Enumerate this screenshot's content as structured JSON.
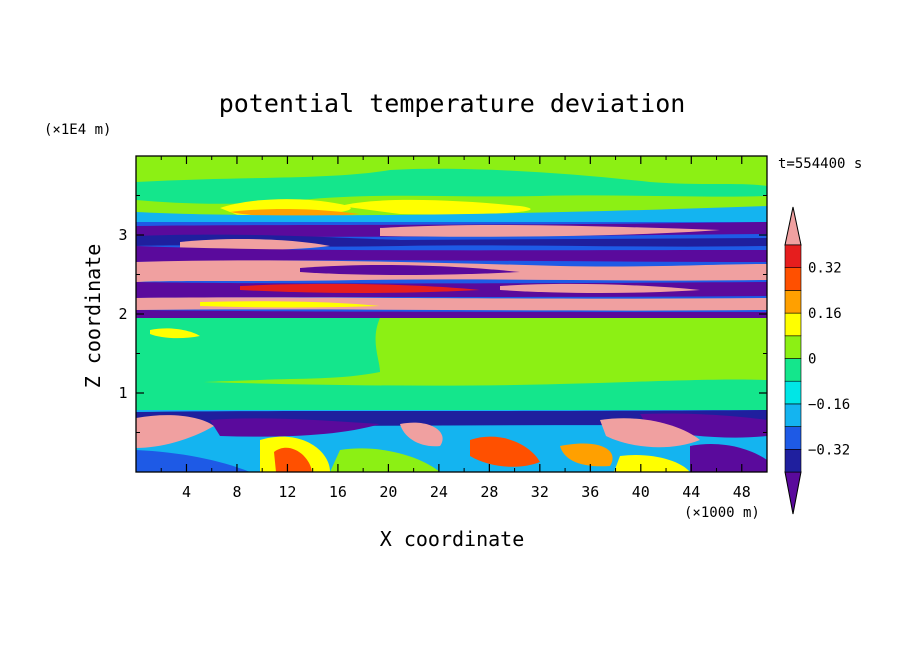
{
  "chart_data": {
    "type": "heatmap",
    "title": "potential temperature deviation",
    "xlabel": "X coordinate",
    "ylabel": "Z coordinate",
    "x_unit": "(×1000 m)",
    "y_unit": "(×1E4 m)",
    "time_label": "t=554400 s",
    "xlim": [
      0,
      50
    ],
    "ylim": [
      0,
      4
    ],
    "x_ticks": [
      4,
      8,
      12,
      16,
      20,
      24,
      28,
      32,
      36,
      40,
      44,
      48
    ],
    "y_ticks": [
      1,
      2,
      3
    ],
    "colorbar": {
      "levels": [
        -0.4,
        -0.32,
        -0.24,
        -0.16,
        -0.08,
        0,
        0.08,
        0.16,
        0.24,
        0.32,
        0.4
      ],
      "labeled_levels": [
        0.32,
        0.16,
        0,
        -0.16,
        -0.32
      ],
      "tick_labels": [
        "0.32",
        "0.16",
        "0",
        "−0.16",
        "−0.32"
      ],
      "colors": [
        "#5a0a9c",
        "#1f1f9e",
        "#1e5ae6",
        "#14b4f0",
        "#00e6e6",
        "#14e68c",
        "#8cf014",
        "#ffff00",
        "#ffa000",
        "#ff5000",
        "#e61e1e",
        "#f0a0a0"
      ],
      "extend": "both"
    },
    "layers": [
      {
        "z_range": [
          3.3,
          4.0
        ],
        "dominant_values": [
          0.0,
          0.1,
          0.2
        ]
      },
      {
        "z_range": [
          2.0,
          3.3
        ],
        "dominant_values": [
          -0.4,
          0.4,
          -0.3,
          0.3
        ]
      },
      {
        "z_range": [
          0.8,
          2.0
        ],
        "dominant_values": [
          0.0,
          -0.05
        ]
      },
      {
        "z_range": [
          0.0,
          0.8
        ],
        "dominant_values": [
          -0.4,
          0.4,
          0.3,
          -0.1
        ]
      }
    ]
  }
}
